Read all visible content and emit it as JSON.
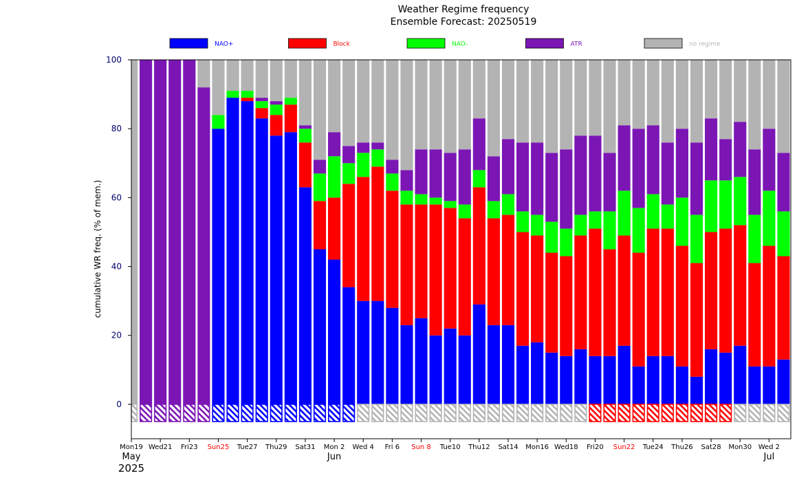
{
  "chart_data": {
    "type": "bar",
    "stacked": true,
    "title": "Weather Regime frequency",
    "subtitle": "Ensemble Forecast: 20250519",
    "ylabel": "cumulative WR freq. (% of mem.)",
    "ylim": [
      -10,
      100
    ],
    "yticks": [
      0,
      20,
      40,
      60,
      80,
      100
    ],
    "grid": false,
    "legend_position": "top",
    "colors": {
      "NAO+": "#0000ff",
      "Block": "#ff0000",
      "NAO-": "#00ff00",
      "ATR": "#7b16b5",
      "no regime": "#b3b3b3"
    },
    "legend": [
      {
        "name": "NAO+",
        "text_color": "#0000ff"
      },
      {
        "name": "Block",
        "text_color": "#ff0000"
      },
      {
        "name": "NAO-",
        "text_color": "#00ff00"
      },
      {
        "name": "ATR",
        "text_color": "#7b16b5"
      },
      {
        "name": "no regime",
        "text_color": "#b3b3b3"
      }
    ],
    "x_tick_labels": [
      {
        "day": 0,
        "label": "Mon19",
        "color": "#000000"
      },
      {
        "day": 2,
        "label": "Wed21",
        "color": "#000000"
      },
      {
        "day": 4,
        "label": "Fri23",
        "color": "#000000"
      },
      {
        "day": 6,
        "label": "Sun25",
        "color": "#ff0000"
      },
      {
        "day": 8,
        "label": "Tue27",
        "color": "#000000"
      },
      {
        "day": 10,
        "label": "Thu29",
        "color": "#000000"
      },
      {
        "day": 12,
        "label": "Sat31",
        "color": "#000000"
      },
      {
        "day": 14,
        "label": "Mon 2",
        "color": "#000000"
      },
      {
        "day": 16,
        "label": "Wed 4",
        "color": "#000000"
      },
      {
        "day": 18,
        "label": "Fri 6",
        "color": "#000000"
      },
      {
        "day": 20,
        "label": "Sun 8",
        "color": "#ff0000"
      },
      {
        "day": 22,
        "label": "Tue10",
        "color": "#000000"
      },
      {
        "day": 24,
        "label": "Thu12",
        "color": "#000000"
      },
      {
        "day": 26,
        "label": "Sat14",
        "color": "#000000"
      },
      {
        "day": 28,
        "label": "Mon16",
        "color": "#000000"
      },
      {
        "day": 30,
        "label": "Wed18",
        "color": "#000000"
      },
      {
        "day": 32,
        "label": "Fri20",
        "color": "#000000"
      },
      {
        "day": 34,
        "label": "Sun22",
        "color": "#ff0000"
      },
      {
        "day": 36,
        "label": "Tue24",
        "color": "#000000"
      },
      {
        "day": 38,
        "label": "Thu26",
        "color": "#000000"
      },
      {
        "day": 40,
        "label": "Sat28",
        "color": "#000000"
      },
      {
        "day": 42,
        "label": "Mon30",
        "color": "#000000"
      },
      {
        "day": 44,
        "label": "Wed 2",
        "color": "#000000"
      }
    ],
    "month_labels": [
      {
        "day": 0,
        "label": "May"
      },
      {
        "day": 14,
        "label": "Jun"
      },
      {
        "day": 44,
        "label": "Jul"
      }
    ],
    "year_label": "2025",
    "dominant_regime": [
      "no regime",
      "ATR",
      "ATR",
      "ATR",
      "ATR",
      "ATR",
      "NAO+",
      "NAO+",
      "NAO+",
      "NAO+",
      "NAO+",
      "NAO+",
      "NAO+",
      "NAO+",
      "NAO+",
      "NAO+",
      "no regime",
      "no regime",
      "no regime",
      "no regime",
      "no regime",
      "no regime",
      "no regime",
      "no regime",
      "no regime",
      "no regime",
      "no regime",
      "no regime",
      "no regime",
      "no regime",
      "no regime",
      "no regime",
      "Block",
      "Block",
      "Block",
      "Block",
      "Block",
      "Block",
      "Block",
      "Block",
      "Block",
      "Block",
      "no regime",
      "no regime",
      "no regime",
      "no regime"
    ],
    "series": [
      {
        "name": "NAO+",
        "values": [
          0,
          0,
          0,
          0,
          0,
          0,
          80,
          89,
          88,
          83,
          78,
          79,
          63,
          45,
          42,
          34,
          30,
          30,
          28,
          23,
          25,
          20,
          22,
          20,
          29,
          23,
          23,
          17,
          18,
          15,
          14,
          16,
          14,
          14,
          17,
          11,
          14,
          14,
          11,
          8,
          16,
          15,
          17,
          11,
          11,
          13
        ]
      },
      {
        "name": "Block",
        "values": [
          0,
          0,
          0,
          0,
          0,
          0,
          0,
          0,
          1,
          3,
          6,
          8,
          13,
          14,
          18,
          30,
          36,
          39,
          34,
          35,
          33,
          38,
          35,
          34,
          34,
          31,
          32,
          33,
          31,
          29,
          29,
          33,
          37,
          31,
          32,
          33,
          37,
          37,
          35,
          33,
          34,
          36,
          35,
          30,
          35,
          30
        ]
      },
      {
        "name": "NAO-",
        "values": [
          0,
          0,
          0,
          0,
          0,
          0,
          4,
          2,
          2,
          2,
          3,
          2,
          4,
          8,
          12,
          6,
          7,
          5,
          5,
          4,
          3,
          2,
          2,
          4,
          5,
          5,
          6,
          6,
          6,
          9,
          8,
          6,
          5,
          11,
          13,
          13,
          10,
          7,
          14,
          14,
          15,
          14,
          14,
          14,
          16,
          13
        ]
      },
      {
        "name": "ATR",
        "values": [
          0,
          100,
          100,
          100,
          100,
          92,
          0,
          0,
          0,
          1,
          1,
          0,
          1,
          4,
          7,
          5,
          3,
          2,
          4,
          6,
          13,
          14,
          14,
          16,
          15,
          13,
          16,
          20,
          21,
          20,
          23,
          23,
          22,
          17,
          19,
          23,
          20,
          18,
          20,
          21,
          18,
          12,
          16,
          19,
          18,
          17
        ]
      },
      {
        "name": "no regime",
        "values": [
          100,
          0,
          0,
          0,
          0,
          8,
          16,
          9,
          9,
          11,
          12,
          11,
          19,
          29,
          21,
          25,
          24,
          24,
          29,
          32,
          26,
          26,
          27,
          26,
          17,
          28,
          23,
          24,
          24,
          27,
          26,
          22,
          22,
          27,
          19,
          20,
          19,
          24,
          20,
          24,
          17,
          23,
          18,
          26,
          20,
          27
        ]
      }
    ]
  }
}
